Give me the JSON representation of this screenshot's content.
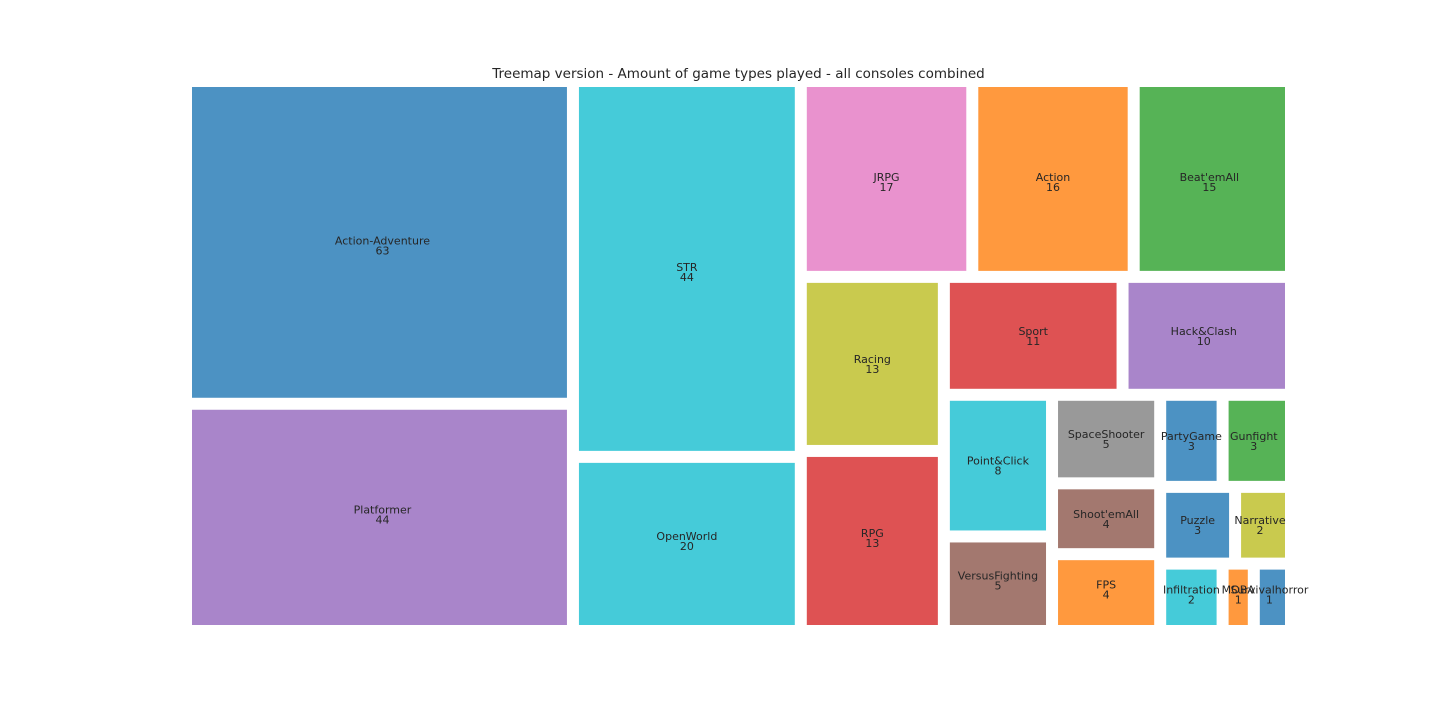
{
  "chart_data": {
    "type": "treemap",
    "title": "Treemap version - Amount of game types played - all consoles combined",
    "items": [
      {
        "label": "Action-Adventure",
        "value": 63,
        "color": "#1f77b4"
      },
      {
        "label": "Platformer",
        "value": 44,
        "color": "#9467bd"
      },
      {
        "label": "STR",
        "value": 44,
        "color": "#17becf"
      },
      {
        "label": "OpenWorld",
        "value": 20,
        "color": "#17becf"
      },
      {
        "label": "JRPG",
        "value": 17,
        "color": "#e377c2"
      },
      {
        "label": "Action",
        "value": 16,
        "color": "#ff7f0e"
      },
      {
        "label": "Beat'emAll",
        "value": 15,
        "color": "#2ca02c"
      },
      {
        "label": "Racing",
        "value": 13,
        "color": "#bcbd22"
      },
      {
        "label": "RPG",
        "value": 13,
        "color": "#d62728"
      },
      {
        "label": "Sport",
        "value": 11,
        "color": "#d62728"
      },
      {
        "label": "Hack&Clash",
        "value": 10,
        "color": "#9467bd"
      },
      {
        "label": "Point&Click",
        "value": 8,
        "color": "#17becf"
      },
      {
        "label": "VersusFighting",
        "value": 5,
        "color": "#8c564b"
      },
      {
        "label": "SpaceShooter",
        "value": 5,
        "color": "#7f7f7f"
      },
      {
        "label": "Shoot'emAll",
        "value": 4,
        "color": "#8c564b"
      },
      {
        "label": "FPS",
        "value": 4,
        "color": "#ff7f0e"
      },
      {
        "label": "PartyGame",
        "value": 3,
        "color": "#1f77b4"
      },
      {
        "label": "Gunfight",
        "value": 3,
        "color": "#2ca02c"
      },
      {
        "label": "Puzzle",
        "value": 3,
        "color": "#1f77b4"
      },
      {
        "label": "Narrative",
        "value": 2,
        "color": "#bcbd22"
      },
      {
        "label": "Infiltration",
        "value": 2,
        "color": "#17becf"
      },
      {
        "label": "MOBA",
        "value": 1,
        "color": "#ff7f0e"
      },
      {
        "label": "Survivalhorror",
        "value": 1,
        "color": "#1f77b4"
      }
    ]
  }
}
